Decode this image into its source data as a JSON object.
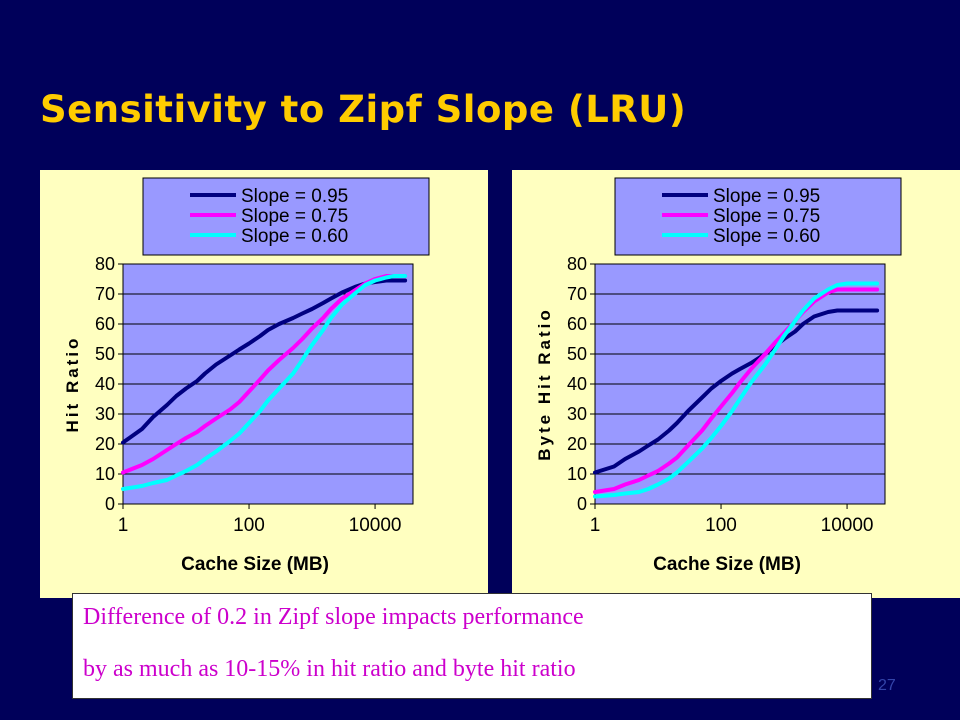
{
  "slide": {
    "title": "Sensitivity to Zipf Slope (LRU)",
    "note_line1": "Difference of 0.2 in Zipf slope impacts performance",
    "note_line2": "by as much as 10-15% in hit ratio and byte hit ratio",
    "page_number": "27"
  },
  "colors": {
    "background": "#00005a",
    "title": "#ffcc00",
    "panel": "#ffffc0",
    "plot_area": "#9999ff",
    "note_text": "#cc00cc",
    "series": [
      "#000080",
      "#ff00ff",
      "#00ffff"
    ]
  },
  "chart_data": [
    {
      "type": "line",
      "xlabel": "Cache Size (MB)",
      "ylabel": "Hit Ratio",
      "xscale": "log",
      "xlim": [
        1,
        40000
      ],
      "ylim": [
        0,
        80
      ],
      "xticks": [
        1,
        100,
        10000
      ],
      "xtick_labels": [
        "1",
        "100",
        "10000"
      ],
      "yticks": [
        0,
        10,
        20,
        30,
        40,
        50,
        60,
        70,
        80
      ],
      "grid": "horizontal",
      "legend_position": "top",
      "x": [
        1,
        2,
        3,
        5,
        7,
        10,
        15,
        20,
        30,
        50,
        70,
        100,
        150,
        200,
        300,
        500,
        700,
        1000,
        1500,
        2000,
        3000,
        5000,
        7000,
        10000,
        15000,
        20000,
        30000
      ],
      "series": [
        {
          "name": "Slope = 0.95",
          "values": [
            20.5,
            25,
            29,
            33,
            36,
            38.5,
            41,
            43.5,
            46.5,
            49.5,
            51.5,
            53.5,
            56,
            58,
            60,
            62,
            63.5,
            65,
            67,
            68.5,
            70.5,
            72.5,
            73.5,
            74,
            74.5,
            74.5,
            74.5
          ]
        },
        {
          "name": "Slope = 0.75",
          "values": [
            10.5,
            13,
            15,
            18,
            20,
            22,
            24,
            26,
            28.5,
            31.5,
            34,
            37.5,
            41.5,
            44.5,
            48,
            52,
            55,
            58.5,
            62,
            65,
            68.5,
            71.5,
            73.5,
            75,
            76,
            76,
            76
          ]
        },
        {
          "name": "Slope = 0.60",
          "values": [
            5,
            6,
            7,
            8,
            9.5,
            11,
            13,
            15,
            17.5,
            21,
            23.5,
            27,
            31,
            34.5,
            38.5,
            43.5,
            48,
            53,
            58,
            62,
            66.5,
            70.5,
            73,
            74.5,
            75.5,
            76,
            76
          ]
        }
      ]
    },
    {
      "type": "line",
      "xlabel": "Cache Size (MB)",
      "ylabel": "Byte Hit Ratio",
      "xscale": "log",
      "xlim": [
        1,
        40000
      ],
      "ylim": [
        0,
        80
      ],
      "xticks": [
        1,
        100,
        10000
      ],
      "xtick_labels": [
        "1",
        "100",
        "10000"
      ],
      "yticks": [
        0,
        10,
        20,
        30,
        40,
        50,
        60,
        70,
        80
      ],
      "grid": "horizontal",
      "legend_position": "top",
      "x": [
        1,
        2,
        3,
        5,
        7,
        10,
        15,
        20,
        30,
        50,
        70,
        100,
        150,
        200,
        300,
        500,
        700,
        1000,
        1500,
        2000,
        3000,
        5000,
        7000,
        10000,
        15000,
        20000,
        30000
      ],
      "series": [
        {
          "name": "Slope = 0.95",
          "values": [
            10.5,
            12.5,
            15,
            17.5,
            19.5,
            21.5,
            24.5,
            27,
            31,
            35.5,
            38.5,
            41,
            43.5,
            45,
            47,
            50,
            52.5,
            55,
            57.5,
            60,
            62.5,
            64,
            64.5,
            64.5,
            64.5,
            64.5,
            64.5
          ]
        },
        {
          "name": "Slope = 0.75",
          "values": [
            4,
            5,
            6.5,
            8,
            9.5,
            11,
            13.5,
            15.5,
            19.5,
            24.5,
            28.5,
            32.5,
            37,
            40.5,
            45,
            50,
            53.5,
            57,
            61,
            64,
            67.5,
            70.5,
            71.5,
            71.5,
            71.5,
            71.5,
            71.5
          ]
        },
        {
          "name": "Slope = 0.60",
          "values": [
            2.5,
            3,
            3.5,
            4,
            5,
            6.5,
            8.5,
            10.5,
            14,
            18.5,
            22,
            26,
            31,
            35,
            40.5,
            46.5,
            51,
            56,
            61,
            64.5,
            68.5,
            71.5,
            73,
            73.5,
            73.5,
            73.5,
            73.5
          ]
        }
      ]
    }
  ]
}
